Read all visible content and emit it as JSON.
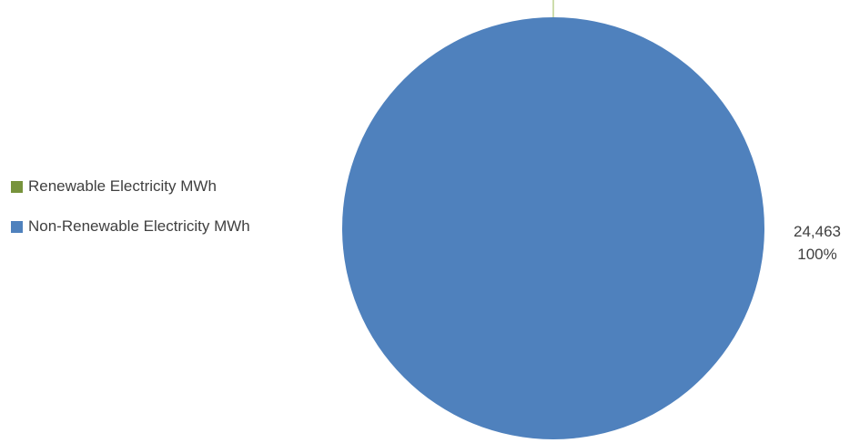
{
  "chart_data": {
    "type": "pie",
    "title": "",
    "categories": [
      "Renewable Electricity MWh",
      "Non-Renewable Electricity MWh"
    ],
    "values": [
      0,
      24463
    ],
    "percentages": [
      "0%",
      "100%"
    ],
    "colors": [
      "#77933C",
      "#4F81BD"
    ],
    "legend_position": "left",
    "data_labels": [
      {
        "value": "24,463",
        "percent": "100%"
      }
    ]
  }
}
